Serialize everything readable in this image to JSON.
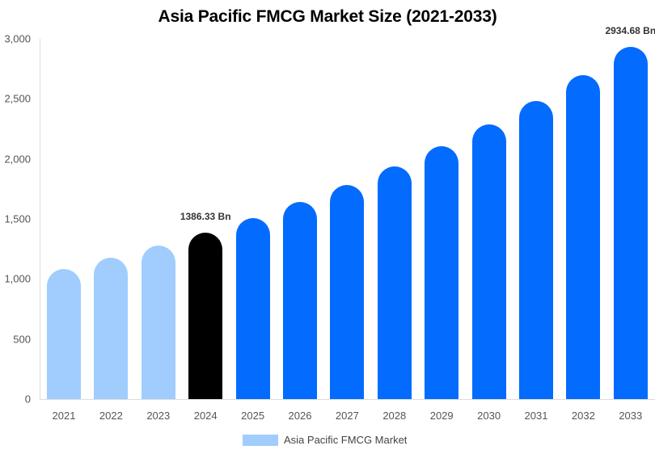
{
  "chart_data": {
    "type": "bar",
    "title": "Asia Pacific FMCG Market Size (2021-2033)",
    "xlabel": "",
    "ylabel": "",
    "ylim": [
      0,
      3000
    ],
    "yticks": [
      0,
      500,
      1000,
      1500,
      2000,
      2500,
      3000
    ],
    "ytick_labels": [
      "0",
      "500",
      "1,000",
      "1,500",
      "2,000",
      "2,500",
      "3,000"
    ],
    "grid": false,
    "legend_position": "bottom",
    "categories": [
      "2021",
      "2022",
      "2023",
      "2024",
      "2025",
      "2026",
      "2027",
      "2028",
      "2029",
      "2030",
      "2031",
      "2032",
      "2033"
    ],
    "series": [
      {
        "name": "Asia Pacific FMCG Market",
        "values": [
          1080,
          1174,
          1276,
          1386.33,
          1507,
          1638,
          1780,
          1935,
          2103,
          2286,
          2484,
          2700,
          2934.68
        ],
        "colors": [
          "#a0cdfd",
          "#a0cdfd",
          "#a0cdfd",
          "#000000",
          "#046bff",
          "#046bff",
          "#046bff",
          "#046bff",
          "#046bff",
          "#046bff",
          "#046bff",
          "#046bff",
          "#046bff"
        ]
      }
    ],
    "annotations": [
      {
        "category": "2024",
        "text": "1386.33 Bn"
      },
      {
        "category": "2033",
        "text": "2934.68 Bn"
      }
    ]
  },
  "legend": {
    "label": "Asia Pacific FMCG Market",
    "color": "#a0cdfd"
  }
}
